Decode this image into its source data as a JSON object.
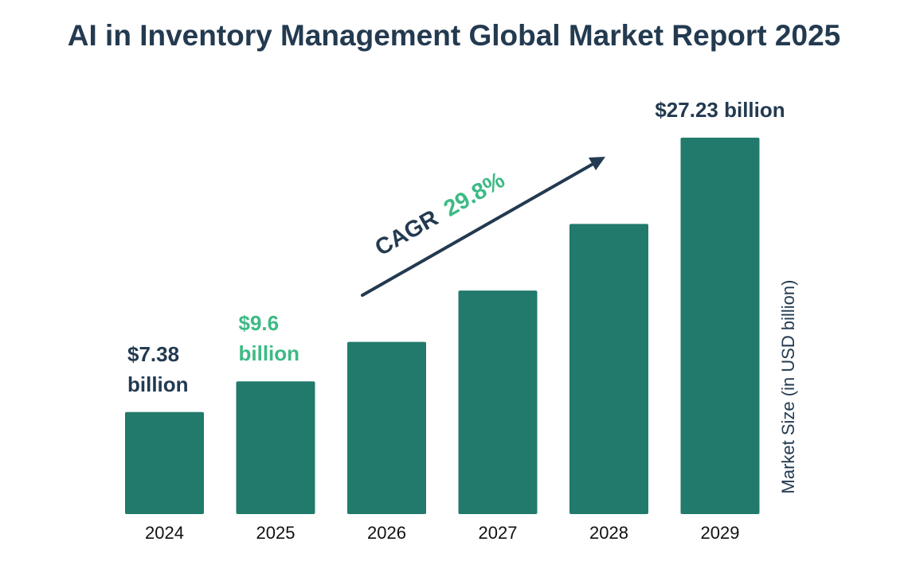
{
  "chart_data": {
    "type": "bar",
    "title": "AI in Inventory Management Global Market Report 2025",
    "ylabel": "Market Size (in USD billion)",
    "xlabel": "",
    "categories": [
      "2024",
      "2025",
      "2026",
      "2027",
      "2028",
      "2029"
    ],
    "values": [
      7.38,
      9.6,
      12.46,
      16.17,
      20.99,
      27.23
    ],
    "ylim": [
      0,
      27.23
    ],
    "grid": false,
    "data_labels": [
      {
        "category": "2024",
        "lines": [
          "$7.38",
          "billion"
        ],
        "color": "#233a50"
      },
      {
        "category": "2025",
        "lines": [
          "$9.6",
          "billion"
        ],
        "color": "#3dba85"
      },
      {
        "category": "2029",
        "lines": [
          "$27.23 billion"
        ],
        "color": "#233a50"
      }
    ],
    "annotation": {
      "label": "CAGR",
      "value": "29.8%",
      "label_color": "#233a50",
      "value_color": "#3dba85"
    },
    "colors": {
      "bar": "#217a6b",
      "text": "#233a50",
      "accent": "#3dba85",
      "tick": "#111111"
    }
  }
}
